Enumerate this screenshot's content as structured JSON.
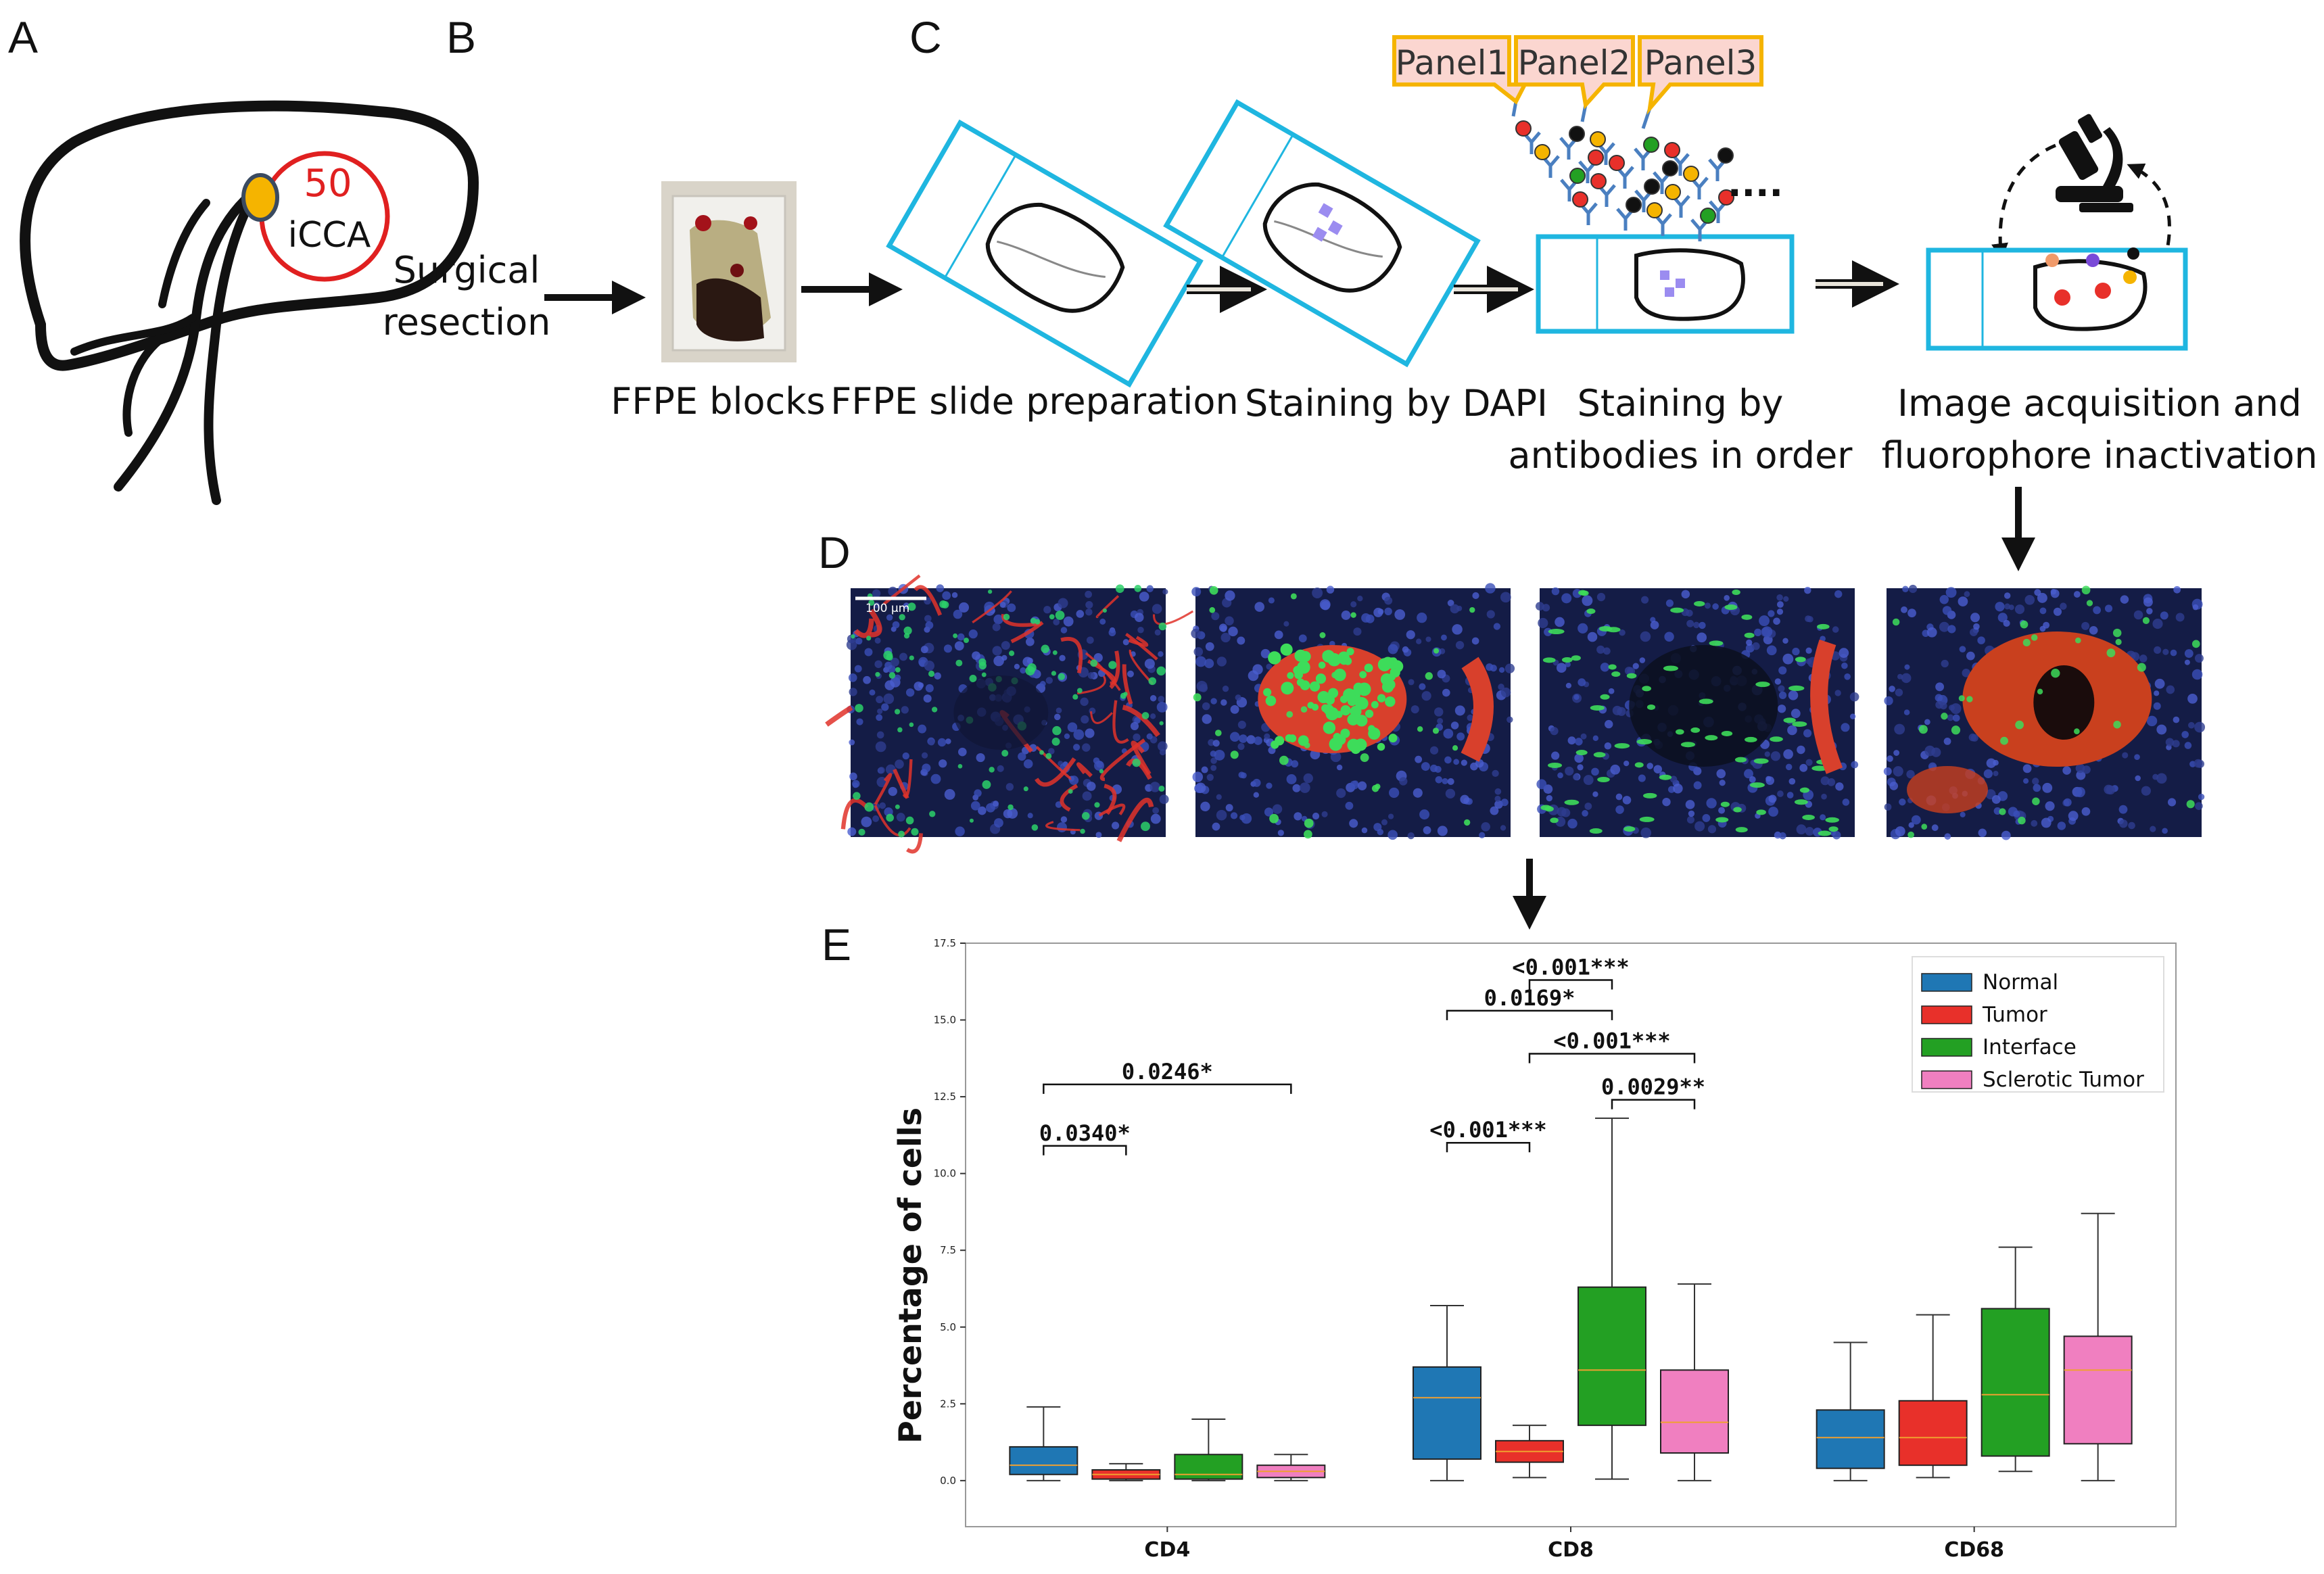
{
  "panel_letters": [
    "A",
    "B",
    "C",
    "D",
    "E"
  ],
  "panel_a": {
    "count_label": "50",
    "tumor_label": "iCCA",
    "count_color": "#e02020"
  },
  "panel_b": {
    "step_label_line1": "Surgical",
    "step_label_line2": "resection",
    "caption": "FFPE blocks"
  },
  "panel_c": {
    "captions": [
      {
        "line1": "FFPE slide preparation",
        "line2": ""
      },
      {
        "line1": "Staining by DAPI",
        "line2": ""
      },
      {
        "line1": "Staining by",
        "line2": "antibodies in order"
      },
      {
        "line1": "Image acquisition and",
        "line2": "fluorophore inactivation"
      }
    ],
    "panels": [
      "Panel1",
      "Panel2",
      "Panel3"
    ],
    "ellipsis": "....",
    "slide_color": "#1fb6e0",
    "callout_border": "#f5b400",
    "callout_fill": "#fbd6d0"
  },
  "panel_d": {
    "scale_bar": "100 μm"
  },
  "chart_data": {
    "type": "box",
    "ylabel": "Percentage of cells",
    "xlabel": "",
    "ylim": [
      -1.5,
      17.5
    ],
    "yticks": [
      "0.0",
      "2.5",
      "5.0",
      "7.5",
      "10.0",
      "12.5",
      "15.0",
      "17.5"
    ],
    "categories": [
      "CD4",
      "CD8",
      "CD68"
    ],
    "legend_position": "top-right",
    "series": [
      {
        "name": "Normal",
        "color": "#1f77b4",
        "boxes": [
          {
            "min": 0.0,
            "q1": 0.2,
            "median": 0.5,
            "q3": 1.1,
            "max": 2.4
          },
          {
            "min": 0.0,
            "q1": 0.7,
            "median": 2.7,
            "q3": 3.7,
            "max": 5.7
          },
          {
            "min": 0.0,
            "q1": 0.4,
            "median": 1.4,
            "q3": 2.3,
            "max": 4.5
          }
        ]
      },
      {
        "name": "Tumor",
        "color": "#e8302a",
        "boxes": [
          {
            "min": 0.0,
            "q1": 0.05,
            "median": 0.2,
            "q3": 0.35,
            "max": 0.55
          },
          {
            "min": 0.1,
            "q1": 0.6,
            "median": 0.95,
            "q3": 1.3,
            "max": 1.8
          },
          {
            "min": 0.1,
            "q1": 0.5,
            "median": 1.4,
            "q3": 2.6,
            "max": 5.4
          }
        ]
      },
      {
        "name": "Interface",
        "color": "#23a023",
        "boxes": [
          {
            "min": 0.0,
            "q1": 0.05,
            "median": 0.2,
            "q3": 0.85,
            "max": 2.0
          },
          {
            "min": 0.05,
            "q1": 1.8,
            "median": 3.6,
            "q3": 6.3,
            "max": 11.8
          },
          {
            "min": 0.3,
            "q1": 0.8,
            "median": 2.8,
            "q3": 5.6,
            "max": 7.6
          }
        ]
      },
      {
        "name": "Sclerotic Tumor",
        "color": "#f07fc0",
        "boxes": [
          {
            "min": 0.0,
            "q1": 0.1,
            "median": 0.3,
            "q3": 0.5,
            "max": 0.85
          },
          {
            "min": 0.0,
            "q1": 0.9,
            "median": 1.9,
            "q3": 3.6,
            "max": 6.4
          },
          {
            "min": 0.0,
            "q1": 1.2,
            "median": 3.6,
            "q3": 4.7,
            "max": 8.7
          }
        ]
      }
    ],
    "significance": [
      {
        "category": 0,
        "from": 0,
        "to": 1,
        "label": "0.0340*",
        "y": 10.9
      },
      {
        "category": 0,
        "from": 0,
        "to": 3,
        "label": "0.0246*",
        "y": 12.9
      },
      {
        "category": 1,
        "from": 0,
        "to": 1,
        "label": "<0.001***",
        "y": 11.0
      },
      {
        "category": 1,
        "from": 2,
        "to": 3,
        "label": "0.0029**",
        "y": 12.4
      },
      {
        "category": 1,
        "from": 1,
        "to": 3,
        "label": "<0.001***",
        "y": 13.9
      },
      {
        "category": 1,
        "from": 0,
        "to": 2,
        "label": "0.0169*",
        "y": 15.3
      },
      {
        "category": 1,
        "from": 1,
        "to": 2,
        "label": "<0.001***",
        "y": 16.3
      }
    ]
  }
}
